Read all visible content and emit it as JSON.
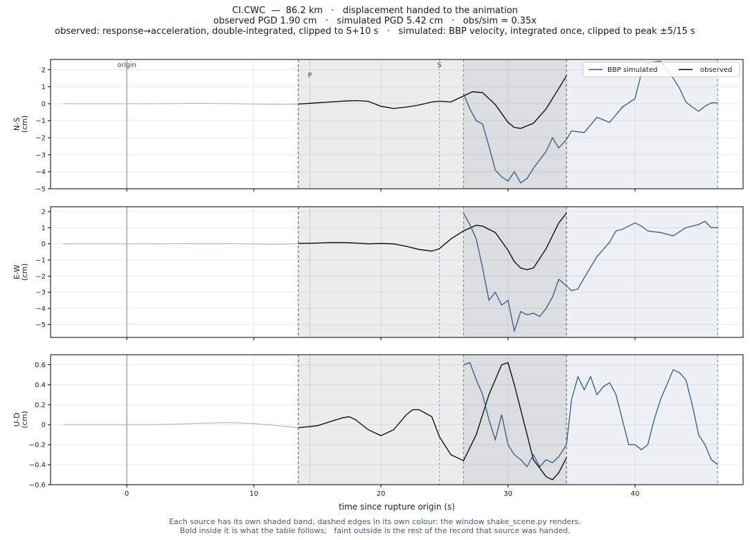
{
  "header": {
    "line1": "CI.CWC  —  86.2 km   ·   displacement handed to the animation",
    "line2": "observed PGD 1.90 cm   ·   simulated PGD 5.42 cm   ·   obs/sim = 0.35x",
    "line3": "observed: response→acceleration, double-integrated, clipped to S+10 s   ·   simulated: BBP velocity, integrated once, clipped to peak ±5/15 s"
  },
  "footer": {
    "line1": "Each source has its own shaded band, dashed edges in its own colour: the window shake_scene.py renders.",
    "line2": "Bold inside it is what the table follows;   faint outside is the rest of the record that source was handed."
  },
  "colors": {
    "observed": "#000000",
    "simulated": "#2e5a87",
    "faint": "#b0b0b0",
    "origin_line": "#a8a3c8",
    "obs_band": "#ececec",
    "sim_band": "#edf0f4",
    "overlap_band": "#dcdde1"
  },
  "chart_data": {
    "type": "line",
    "xlabel": "time since rupture origin (s)",
    "xlim": [
      -6,
      48.5
    ],
    "xticks": [
      0,
      10,
      20,
      30,
      40
    ],
    "markers": {
      "origin": {
        "label": "origin",
        "t": 0
      },
      "P": {
        "label": "P",
        "t": 14.4
      },
      "S": {
        "label": "S",
        "t": 24.6
      }
    },
    "windows": {
      "observed": [
        13.5,
        34.6
      ],
      "simulated": [
        26.5,
        46.5
      ]
    },
    "legend": {
      "position": "top-right",
      "entries": [
        "BBP simulated",
        "observed"
      ]
    },
    "panels": [
      {
        "name": "N-S",
        "ylabel": "N-S\n(cm)",
        "ylim": [
          -5,
          2.6
        ],
        "yticks": [
          2,
          1,
          0,
          -1,
          -2,
          -3,
          -4,
          -5
        ],
        "observed": {
          "t": [
            -5,
            -2,
            0,
            2,
            5,
            8,
            10,
            12,
            13.5,
            15,
            16,
            17,
            18,
            19,
            20,
            21,
            22,
            23,
            24,
            24.6,
            25.5,
            26.5,
            27.2,
            28,
            29,
            30,
            30.5,
            31,
            32,
            33,
            34,
            34.6
          ],
          "v": [
            0,
            0,
            0,
            0,
            0.02,
            0.01,
            -0.02,
            -0.04,
            -0.02,
            0.05,
            0.1,
            0.15,
            0.18,
            0.14,
            -0.15,
            -0.28,
            -0.2,
            -0.08,
            0.1,
            0.15,
            0.1,
            0.45,
            0.7,
            0.65,
            -0.05,
            -1.1,
            -1.4,
            -1.45,
            -1.15,
            -0.3,
            0.9,
            1.65
          ]
        },
        "simulated": {
          "t": [
            26.5,
            27,
            27.5,
            28,
            28.5,
            29,
            29.5,
            30,
            30.5,
            31,
            31.5,
            32,
            32.5,
            33,
            33.5,
            34,
            34.6,
            35,
            36,
            37,
            38,
            39,
            40,
            40.5,
            41,
            42,
            43,
            43.5,
            44,
            44.5,
            45,
            45.5,
            46,
            46.5
          ],
          "v": [
            0.6,
            -0.3,
            -1,
            -1.2,
            -2.5,
            -3.9,
            -4.3,
            -4.55,
            -4,
            -4.65,
            -4.4,
            -3.8,
            -3.3,
            -2.8,
            -2.0,
            -2.6,
            -2.1,
            -1.6,
            -1.7,
            -0.8,
            -1.1,
            -0.2,
            0.3,
            1.8,
            2.4,
            2.5,
            1.5,
            0.9,
            0.1,
            -0.2,
            -0.45,
            -0.15,
            0.05,
            0.05
          ]
        }
      },
      {
        "name": "E-W",
        "ylabel": "E-W\n(cm)",
        "ylim": [
          -5.8,
          2.3
        ],
        "yticks": [
          2,
          1,
          0,
          -1,
          -2,
          -3,
          -4,
          -5
        ],
        "observed": {
          "t": [
            -5,
            -2,
            0,
            2,
            5,
            8,
            10,
            12,
            13.5,
            15,
            16,
            17,
            18,
            19,
            20,
            21,
            22,
            23,
            24,
            24.6,
            25.5,
            26.5,
            27.5,
            28,
            29,
            30,
            30.5,
            31,
            31.5,
            32,
            33,
            34,
            34.6
          ],
          "v": [
            0,
            0,
            0,
            0,
            0.01,
            0.01,
            -0.01,
            -0.03,
            0.02,
            0.05,
            0.08,
            0.08,
            0.05,
            0,
            0.02,
            0,
            -0.15,
            -0.35,
            -0.45,
            -0.3,
            0.3,
            0.8,
            1.15,
            1.1,
            0.7,
            -0.4,
            -1.1,
            -1.5,
            -1.6,
            -1.5,
            -0.3,
            1.3,
            1.9
          ]
        },
        "simulated": {
          "t": [
            26.5,
            27,
            27.5,
            28,
            28.5,
            29,
            29.5,
            30,
            30.5,
            31,
            31.5,
            32,
            32.5,
            33,
            33.5,
            34,
            34.6,
            35,
            35.5,
            36,
            37,
            38,
            38.5,
            39,
            40,
            40.5,
            41,
            42,
            43,
            44,
            45,
            45.5,
            46,
            46.5
          ],
          "v": [
            1.9,
            1.2,
            0.3,
            -1.5,
            -3.5,
            -3.0,
            -3.8,
            -3.5,
            -5.4,
            -4.2,
            -4.4,
            -4.3,
            -4.5,
            -4,
            -3.3,
            -2.2,
            -2.6,
            -2.9,
            -2.8,
            -2.1,
            -0.8,
            0.1,
            0.8,
            0.9,
            1.3,
            1.1,
            0.8,
            0.7,
            0.5,
            1.0,
            1.2,
            1.4,
            1.0,
            1.0
          ]
        }
      },
      {
        "name": "U-D",
        "ylabel": "U-D\n(cm)",
        "ylim": [
          -0.6,
          0.7
        ],
        "yticks": [
          0.6,
          0.4,
          0.2,
          0.0,
          -0.2,
          -0.4,
          -0.6
        ],
        "observed": {
          "t": [
            -5,
            -2,
            0,
            2,
            5,
            8,
            10,
            12,
            13.5,
            15,
            16,
            17,
            17.5,
            18,
            19,
            20,
            20.5,
            21,
            22,
            22.5,
            23,
            24,
            24.6,
            25.5,
            26.5,
            27.5,
            28.5,
            29.5,
            30,
            30.5,
            31.5,
            32,
            33,
            33.5,
            34,
            34.6
          ],
          "v": [
            0,
            0,
            0,
            0,
            0.01,
            0.02,
            0.01,
            -0.01,
            -0.03,
            -0.01,
            0.03,
            0.07,
            0.08,
            0.05,
            -0.05,
            -0.11,
            -0.08,
            -0.05,
            0.1,
            0.15,
            0.15,
            0.08,
            -0.12,
            -0.3,
            -0.36,
            -0.1,
            0.3,
            0.6,
            0.62,
            0.4,
            -0.1,
            -0.35,
            -0.52,
            -0.55,
            -0.48,
            -0.33
          ]
        },
        "simulated": {
          "t": [
            26.5,
            27,
            27.5,
            28,
            28.5,
            29,
            29.5,
            30,
            30.5,
            31,
            31.5,
            32,
            32.5,
            33,
            33.5,
            34,
            34.6,
            35,
            35.5,
            36,
            36.5,
            37,
            37.5,
            38,
            38.5,
            39,
            39.5,
            40,
            40.5,
            41,
            41.5,
            42,
            42.5,
            43,
            43.5,
            44,
            44.5,
            45,
            45.5,
            46,
            46.5
          ],
          "v": [
            0.6,
            0.62,
            0.45,
            0.3,
            0.05,
            -0.15,
            0.1,
            -0.2,
            -0.3,
            -0.35,
            -0.42,
            -0.3,
            -0.42,
            -0.35,
            -0.38,
            -0.32,
            -0.2,
            0.25,
            0.48,
            0.35,
            0.48,
            0.3,
            0.38,
            0.42,
            0.3,
            0.05,
            -0.2,
            -0.2,
            -0.25,
            -0.2,
            0.05,
            0.25,
            0.4,
            0.55,
            0.52,
            0.45,
            0.2,
            -0.1,
            -0.2,
            -0.35,
            -0.4
          ]
        }
      }
    ]
  }
}
